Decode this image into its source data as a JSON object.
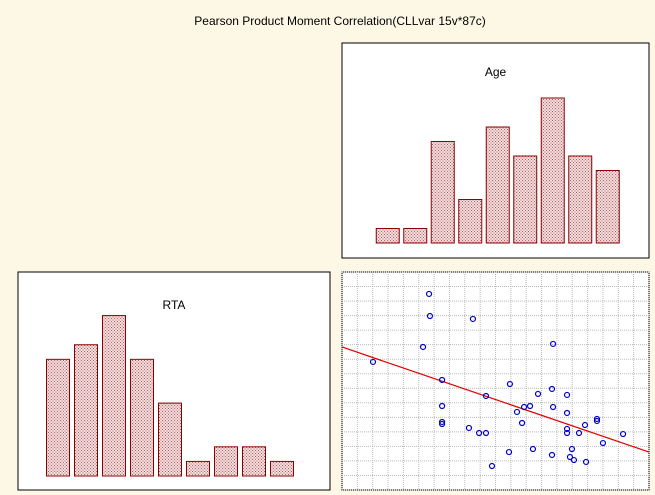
{
  "title": "Pearson Product Moment Correlation(CLLvar 15v*87c)",
  "chart_data": [
    {
      "type": "bar",
      "title": "Age",
      "values": [
        1,
        1,
        7,
        3,
        8,
        6,
        10,
        6,
        5
      ],
      "color": "#8b0000",
      "ylim": [
        0,
        12
      ]
    },
    {
      "type": "bar",
      "title": "RTA",
      "values": [
        8,
        9,
        11,
        8,
        5,
        1,
        2,
        2,
        1
      ],
      "color": "#8b0000",
      "ylim": [
        0,
        12
      ]
    },
    {
      "type": "scatter",
      "color": "#0000cc",
      "line_color": "#e00000",
      "grid": true,
      "x": [
        2.02,
        5.67,
        5.73,
        5.28,
        8.53,
        13.75,
        6.52,
        6.52,
        6.52,
        6.52,
        8.27,
        8.93,
        9.38,
        9.38,
        10.94,
        11.4,
        11.73,
        11.86,
        12.25,
        12.77,
        9.77,
        10.88,
        12.44,
        13.68,
        13.75,
        14.66,
        14.66,
        13.68,
        14.66,
        14.66,
        14.85,
        14.98,
        15.11,
        15.44,
        15.83,
        15.9,
        16.61,
        16.61,
        17.0,
        18.31
      ],
      "y": [
        8.81,
        13.49,
        11.97,
        9.84,
        11.77,
        10.05,
        7.57,
        5.78,
        4.68,
        4.54,
        4.27,
        3.92,
        3.92,
        6.47,
        7.29,
        5.37,
        4.61,
        5.71,
        5.78,
        6.61,
        1.65,
        2.61,
        2.82,
        6.95,
        5.71,
        6.54,
        5.3,
        2.41,
        4.2,
        3.92,
        2.27,
        2.82,
        2.06,
        3.92,
        4.47,
        1.93,
        4.89,
        4.75,
        3.23,
        3.85
      ],
      "fit_line": {
        "x": [
          0,
          20
        ],
        "y": [
          9.84,
          2.61
        ]
      },
      "xlim": [
        0,
        20
      ],
      "ylim": [
        0,
        15
      ],
      "xticks": [
        0,
        1,
        2,
        3,
        4,
        5,
        6,
        7,
        8,
        9,
        10,
        11,
        12,
        13,
        14,
        15,
        16,
        17,
        18,
        19,
        20
      ],
      "yticks": [
        0,
        1,
        2,
        3,
        4,
        5,
        6,
        7,
        8,
        9,
        10,
        11,
        12,
        13,
        14,
        15
      ]
    }
  ]
}
